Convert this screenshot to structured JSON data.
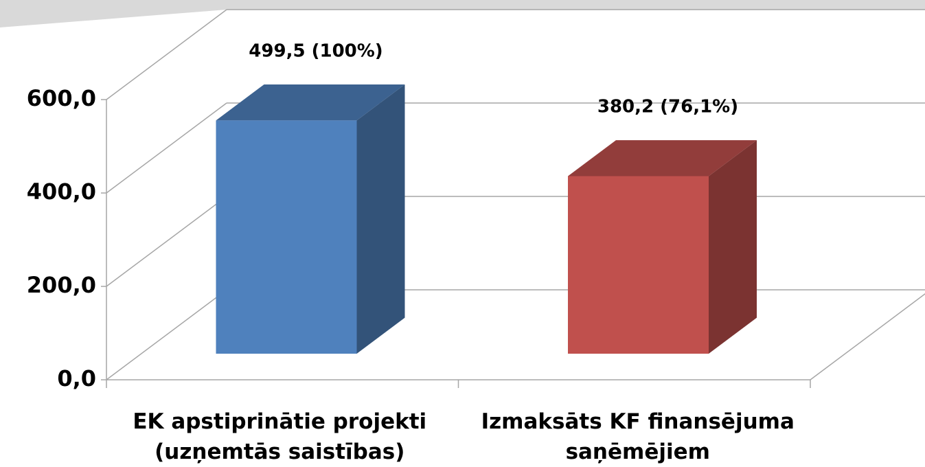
{
  "chart_data": {
    "type": "bar3d",
    "categories": [
      "EK apstiprinātie projekti (uzņemtās saistības)",
      "Izmaksāts KF finansējuma saņēmējiem"
    ],
    "series": [
      {
        "values": [
          499.5,
          380.2
        ],
        "value_labels": [
          "499,5 (100%)",
          "380,2 (76,1%)"
        ],
        "colors": [
          "#4f81bd",
          "#c0504d"
        ]
      }
    ],
    "ylim": [
      0,
      600
    ],
    "yticks": [
      {
        "value": 0,
        "label": "0,0"
      },
      {
        "value": 200,
        "label": "200,0"
      },
      {
        "value": 400,
        "label": "400,0"
      },
      {
        "value": 600,
        "label": "600,0"
      }
    ],
    "grid": true
  }
}
